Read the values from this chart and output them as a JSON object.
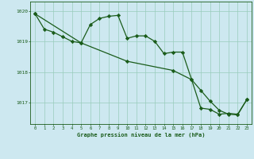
{
  "background_color": "#cde8f0",
  "grid_color": "#99ccbb",
  "line_color": "#1a5c1a",
  "xlabel": "Graphe pression niveau de la mer (hPa)",
  "xlim": [
    -0.5,
    23.5
  ],
  "ylim": [
    1016.3,
    1020.3
  ],
  "yticks": [
    1017,
    1018,
    1019,
    1020
  ],
  "xticks": [
    0,
    1,
    2,
    3,
    4,
    5,
    6,
    7,
    8,
    9,
    10,
    11,
    12,
    13,
    14,
    15,
    16,
    17,
    18,
    19,
    20,
    21,
    22,
    23
  ],
  "series1_x": [
    0,
    1,
    2,
    3,
    4,
    5,
    6,
    7,
    8,
    9,
    10,
    11,
    12,
    13,
    14,
    15,
    16,
    17,
    18,
    19,
    20,
    21,
    22,
    23
  ],
  "series1_y": [
    1019.9,
    1019.4,
    1019.3,
    1019.15,
    1019.0,
    1018.95,
    1019.55,
    1019.75,
    1019.82,
    1019.85,
    1019.1,
    1019.18,
    1019.18,
    1019.0,
    1018.6,
    1018.65,
    1018.65,
    1017.75,
    1016.82,
    1016.78,
    1016.62,
    1016.65,
    1016.62,
    1017.1
  ],
  "series2_x": [
    0,
    5,
    10,
    15,
    17,
    18,
    19,
    20,
    21,
    22,
    23
  ],
  "series2_y": [
    1019.9,
    1018.95,
    1018.35,
    1018.05,
    1017.75,
    1017.4,
    1017.05,
    1016.75,
    1016.62,
    1016.6,
    1017.1
  ],
  "marker": "D",
  "marker_size": 2.2,
  "linewidth": 0.9
}
